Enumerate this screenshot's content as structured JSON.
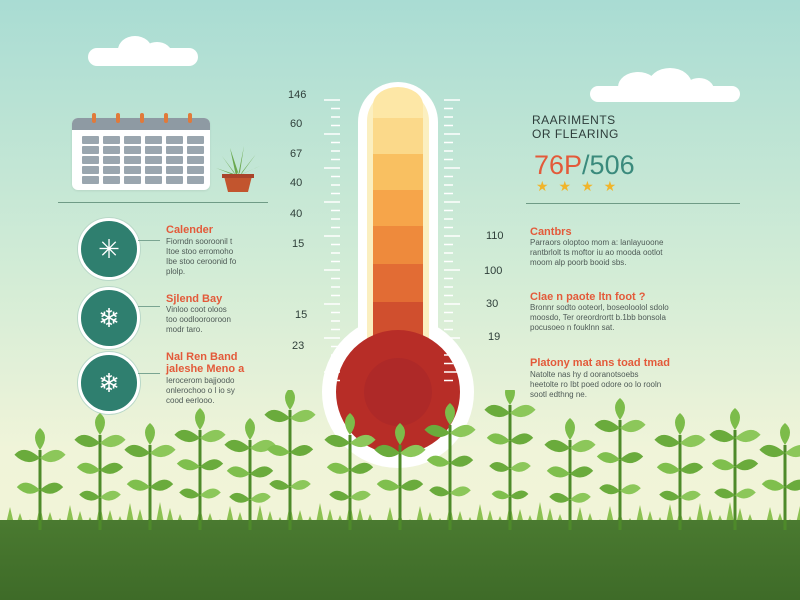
{
  "header": {
    "line1": "RAARIMENTS",
    "line2": "OR FLEARING",
    "big_value_a": "76P",
    "big_value_b": "/506",
    "stars": "★★★★"
  },
  "scale_left": [
    "146",
    "60",
    "67",
    "40",
    "40",
    "15",
    "15",
    "23"
  ],
  "scale_right": [
    "110",
    "100",
    "30",
    "19"
  ],
  "left_items": [
    {
      "icon": "snowflake-icon",
      "glyph": "✳",
      "title": "Calender",
      "body": [
        "Fiorndn sooroonil t",
        "Itoe stoo erromoho",
        "Ibe stoo ceroonid fo",
        "plolp."
      ]
    },
    {
      "icon": "snowflake-icon",
      "glyph": "❄",
      "title": "Sjlend Bay",
      "body": [
        "Vinloo coot oloos",
        "too oodloorooroon",
        "modr taro."
      ]
    },
    {
      "icon": "snowflake-icon",
      "glyph": "❄",
      "title": "Nal Ren Band Jaleshe Meno a",
      "title_lines": [
        "Nal Ren Band",
        "jaleshe Meno a"
      ],
      "body": [
        "Ierocerom bajjoodo",
        "onlerochoo o l io sy",
        "cood eerlooo."
      ]
    }
  ],
  "right_items": [
    {
      "title": "Cantbrs",
      "body": [
        "Parraors oloptoo mom a: lanlayuoone",
        "rantbrlolt ts moftor iu ao mooda ootlot",
        "moom alp poorb booid sbs."
      ]
    },
    {
      "title": "Clae n paote ltn foot ?",
      "body": [
        "Bronnr sodto ooteorl, boseoloolol sdolo",
        "moosdo, Ter oreordrortt b.1bb bonsola",
        "pocusoeo n fouklnn sat."
      ]
    },
    {
      "title": "Platony mat ans toad tmad",
      "body": [
        "Natolte nas hy d ooranotsoebs",
        "heetolte ro Ibt poed odore oo lo rooln",
        "sootl edthng ne."
      ]
    }
  ],
  "colors": {
    "accent_red": "#e35a3a",
    "accent_teal": "#3a8a7c",
    "star": "#f0b52b",
    "ground": "#3e6b28"
  }
}
